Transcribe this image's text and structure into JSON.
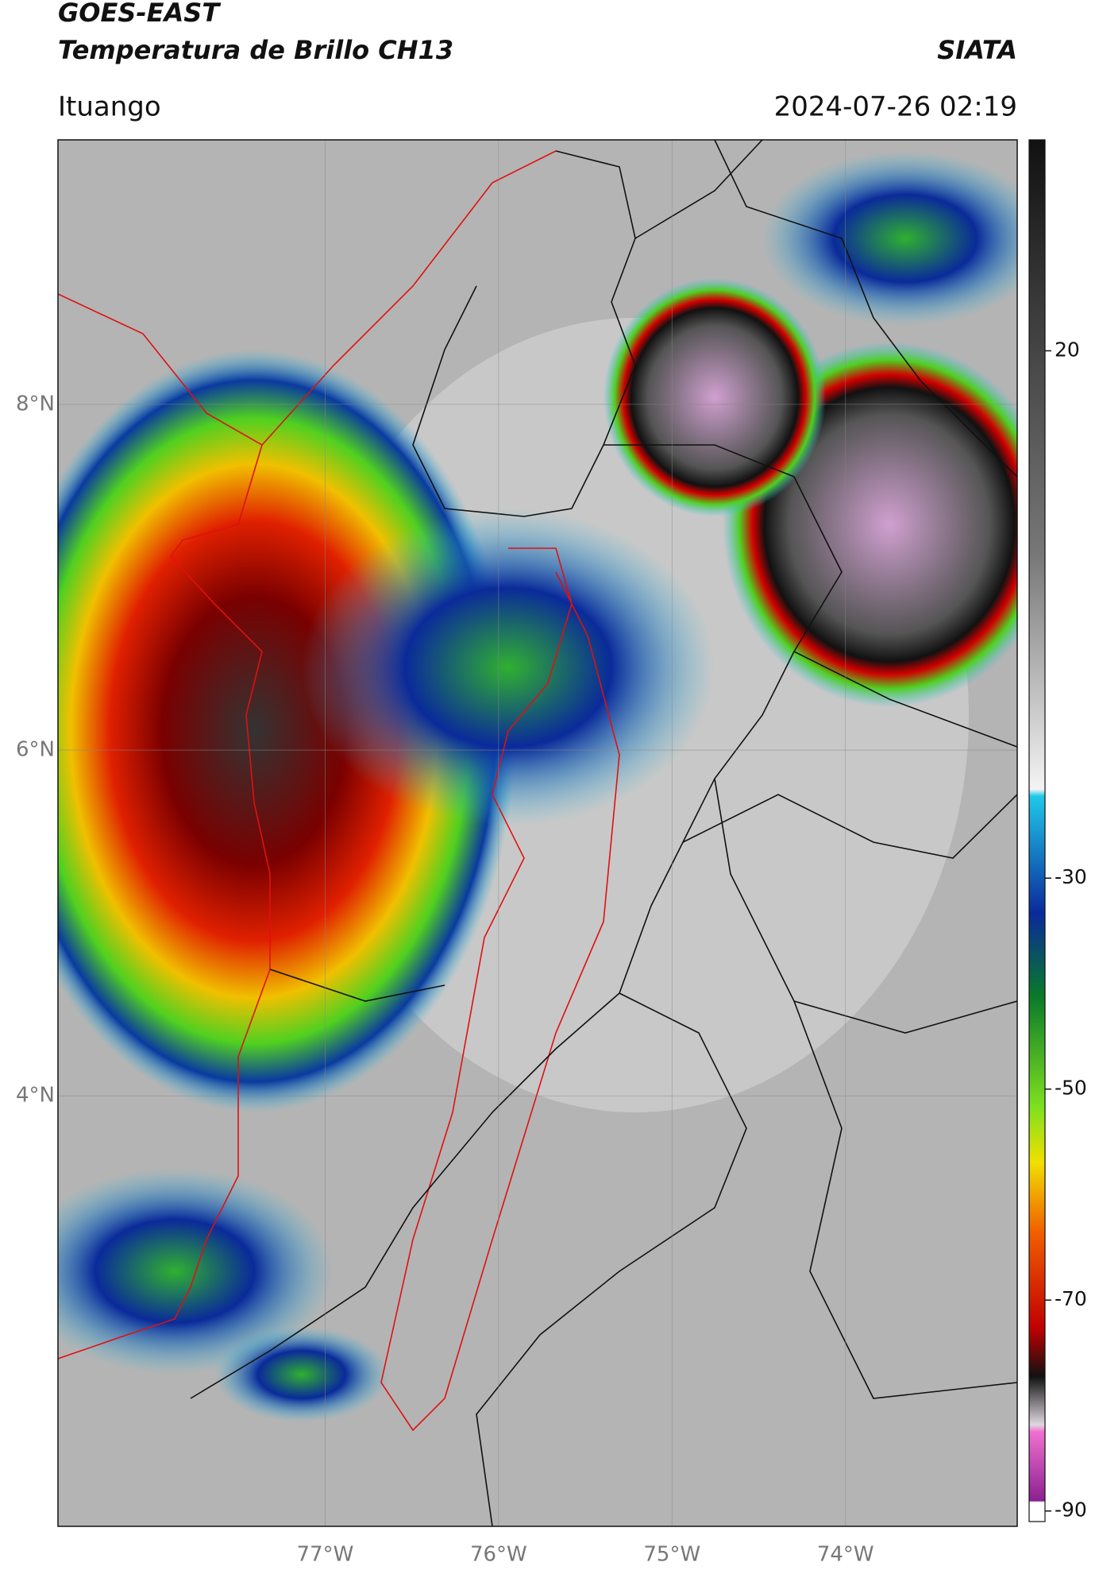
{
  "header": {
    "title": "GOES-EAST",
    "subtitle": "Temperatura de Brillo CH13",
    "source": "SIATA",
    "location": "Ituango",
    "datetime": "2024-07-26 02:19"
  },
  "map": {
    "latlim": [
      1.51,
      9.53
    ],
    "lonlim": [
      -78.54,
      -73.01
    ],
    "lat_ticks": [
      {
        "value": 8,
        "label": "8°N"
      },
      {
        "value": 6,
        "label": "6°N"
      },
      {
        "value": 4,
        "label": "4°N"
      }
    ],
    "lon_ticks": [
      {
        "value": -77,
        "label": "77°W"
      },
      {
        "value": -76,
        "label": "76°W"
      },
      {
        "value": -75,
        "label": "75°W"
      },
      {
        "value": -74,
        "label": "74°W"
      }
    ]
  },
  "colorbar": {
    "clim": [
      -91,
      40
    ],
    "ticks": [
      20,
      -30,
      -50,
      -70,
      -90
    ]
  }
}
